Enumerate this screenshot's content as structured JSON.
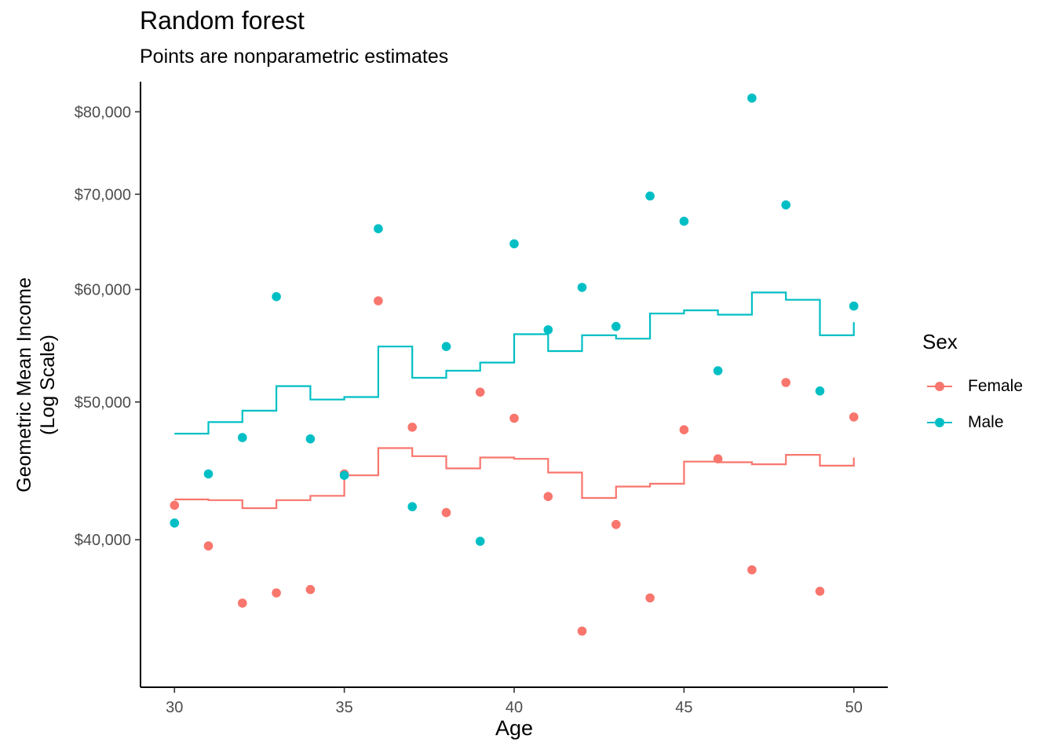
{
  "chart_data": {
    "type": "line",
    "title": "Random forest",
    "subtitle": "Points are nonparametric estimates",
    "xlabel": "Age",
    "ylabel": [
      "Geometric Mean Income",
      "(Log Scale)"
    ],
    "x_scale": "linear",
    "y_scale": "log",
    "xlim": [
      29,
      51
    ],
    "ylim": [
      31500,
      84000
    ],
    "x_ticks": [
      30,
      35,
      40,
      45,
      50
    ],
    "x_tick_labels": [
      "30",
      "35",
      "40",
      "45",
      "50"
    ],
    "y_ticks": [
      40000,
      50000,
      60000,
      70000,
      80000
    ],
    "y_tick_labels": [
      "$40,000",
      "$50,000",
      "$60,000",
      "$70,000",
      "$80,000"
    ],
    "grid": false,
    "legend": {
      "title": "Sex",
      "placement": "right"
    },
    "series": [
      {
        "name": "Female",
        "color": "#F8766D",
        "points": {
          "x": [
            30,
            31,
            32,
            33,
            34,
            35,
            36,
            37,
            38,
            39,
            40,
            41,
            42,
            43,
            44,
            45,
            46,
            47,
            48,
            49,
            50
          ],
          "y": [
            42300,
            39600,
            36100,
            36700,
            36900,
            44500,
            58900,
            48000,
            41800,
            50800,
            48700,
            42900,
            34500,
            41000,
            36400,
            47800,
            45600,
            38100,
            51600,
            36800,
            48800
          ]
        },
        "step": {
          "x": [
            30,
            31,
            32,
            33,
            34,
            35,
            36,
            37,
            38,
            39,
            40,
            41,
            42,
            43,
            44,
            45,
            46,
            47,
            48,
            49,
            50
          ],
          "y": [
            42700,
            42650,
            42100,
            42650,
            42950,
            44400,
            46400,
            45800,
            44900,
            45700,
            45600,
            44600,
            42800,
            43600,
            43800,
            45400,
            45350,
            45200,
            45900,
            45100,
            45700
          ]
        }
      },
      {
        "name": "Male",
        "color": "#00BFC4",
        "points": {
          "x": [
            30,
            31,
            32,
            33,
            34,
            35,
            36,
            37,
            38,
            39,
            40,
            41,
            42,
            43,
            44,
            45,
            46,
            47,
            48,
            49,
            50
          ],
          "y": [
            41100,
            44500,
            47200,
            59300,
            47100,
            44400,
            66200,
            42200,
            54700,
            39900,
            64600,
            56200,
            60200,
            56500,
            69800,
            67000,
            52600,
            81800,
            68800,
            50900,
            58400
          ]
        },
        "step": {
          "x": [
            30,
            31,
            32,
            33,
            34,
            35,
            36,
            37,
            38,
            39,
            40,
            41,
            42,
            43,
            44,
            45,
            46,
            47,
            48,
            49,
            50
          ],
          "y": [
            47500,
            48400,
            49300,
            51300,
            50200,
            50400,
            54700,
            52000,
            52600,
            53300,
            55800,
            54300,
            55700,
            55400,
            57700,
            58000,
            57600,
            59700,
            59000,
            55700,
            56900
          ]
        }
      }
    ]
  }
}
